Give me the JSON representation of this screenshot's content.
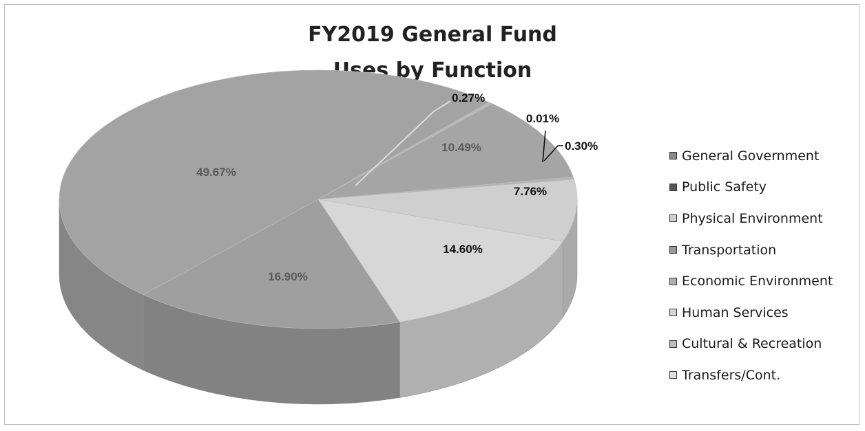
{
  "chart_data": {
    "type": "pie",
    "style": "3d",
    "title": [
      "FY2019 General Fund",
      "Uses by Function"
    ],
    "categories": [
      "General Government",
      "Public Safety",
      "Physical Environment",
      "Transportation",
      "Economic Environment",
      "Human Services",
      "Cultural & Recreation",
      "Transfers/Cont."
    ],
    "values": [
      10.49,
      49.67,
      0.27,
      16.9,
      14.6,
      7.76,
      0.3,
      0.01
    ],
    "value_labels": [
      "10.49%",
      "49.67%",
      "0.27%",
      "16.90%",
      "14.60%",
      "7.76%",
      "0.30%",
      "0.01%"
    ],
    "slices_in_draw_order": [
      {
        "category": "Transfers/Cont.",
        "value": 0.01,
        "label": "0.01%",
        "color": "#a9a9a9",
        "label_outside": true
      },
      {
        "category": "Cultural & Recreation",
        "value": 0.3,
        "label": "0.30%",
        "color": "#b4b4b4",
        "label_outside": true
      },
      {
        "category": "Human Services",
        "value": 7.76,
        "label": "7.76%",
        "color": "#cfcfcf",
        "label_outside": false
      },
      {
        "category": "Economic Environment",
        "value": 14.6,
        "label": "14.60%",
        "color": "#d7d7d7",
        "label_outside": false
      },
      {
        "category": "Transportation",
        "value": 16.9,
        "label": "16.90%",
        "color": "#9f9f9f",
        "label_outside": false
      },
      {
        "category": "Public Safety",
        "value": 49.67,
        "label": "49.67%",
        "color": "#a3a3a3",
        "label_outside": false
      },
      {
        "category": "Physical Environment",
        "value": 0.27,
        "label": "0.27%",
        "color": "#b9b9b9",
        "label_outside": true
      },
      {
        "category": "General Government",
        "value": 10.49,
        "label": "10.49%",
        "color": "#a5a5a5",
        "label_outside": false
      }
    ],
    "legend": {
      "position": "right",
      "items": [
        {
          "label": "General Government",
          "color": "#8a8a8a"
        },
        {
          "label": "Public Safety",
          "color": "#555555"
        },
        {
          "label": "Physical Environment",
          "color": "#cfcfcf"
        },
        {
          "label": "Transportation",
          "color": "#9a9a9a"
        },
        {
          "label": "Economic Environment",
          "color": "#b0b0b0"
        },
        {
          "label": "Human Services",
          "color": "#d4d4d4"
        },
        {
          "label": "Cultural & Recreation",
          "color": "#bdbdbd"
        },
        {
          "label": "Transfers/Cont.",
          "color": "#e0e0e0"
        }
      ]
    }
  }
}
